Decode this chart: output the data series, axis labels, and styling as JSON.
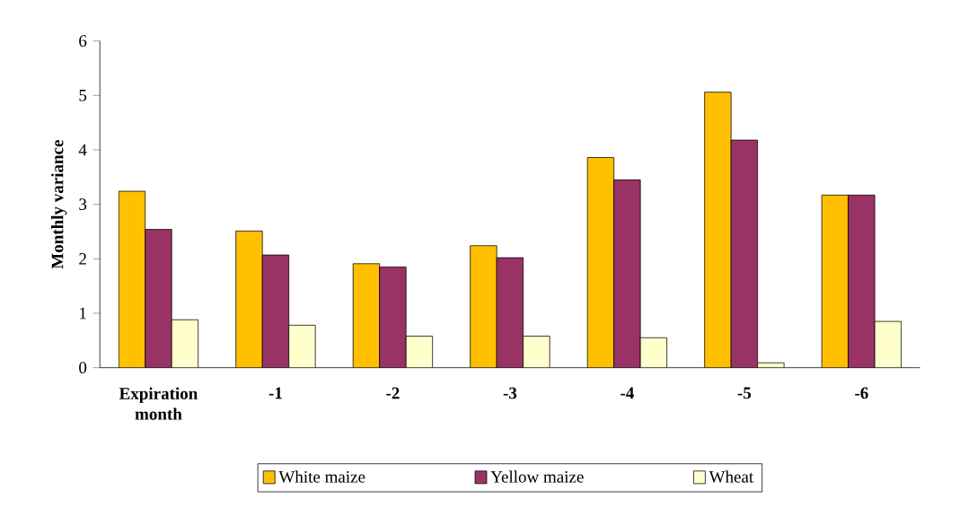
{
  "chart_data": {
    "type": "bar",
    "ylabel": "Monthly variance",
    "categories": [
      "Expiration month",
      "-1",
      "-2",
      "-3",
      "-4",
      "-5",
      "-6"
    ],
    "series": [
      {
        "name": "White maize",
        "color": "#ffc000",
        "values": [
          3.24,
          2.51,
          1.91,
          2.24,
          3.86,
          5.06,
          3.17
        ]
      },
      {
        "name": "Yellow maize",
        "color": "#993366",
        "values": [
          2.54,
          2.07,
          1.85,
          2.02,
          3.45,
          4.18,
          3.17
        ]
      },
      {
        "name": "Wheat",
        "color": "#ffffcc",
        "values": [
          0.88,
          0.78,
          0.58,
          0.58,
          0.55,
          0.09,
          0.85
        ]
      }
    ],
    "ylim": [
      0,
      6
    ],
    "yticks": [
      0,
      1,
      2,
      3,
      4,
      5,
      6
    ],
    "legend": "bottom",
    "grid": false
  }
}
